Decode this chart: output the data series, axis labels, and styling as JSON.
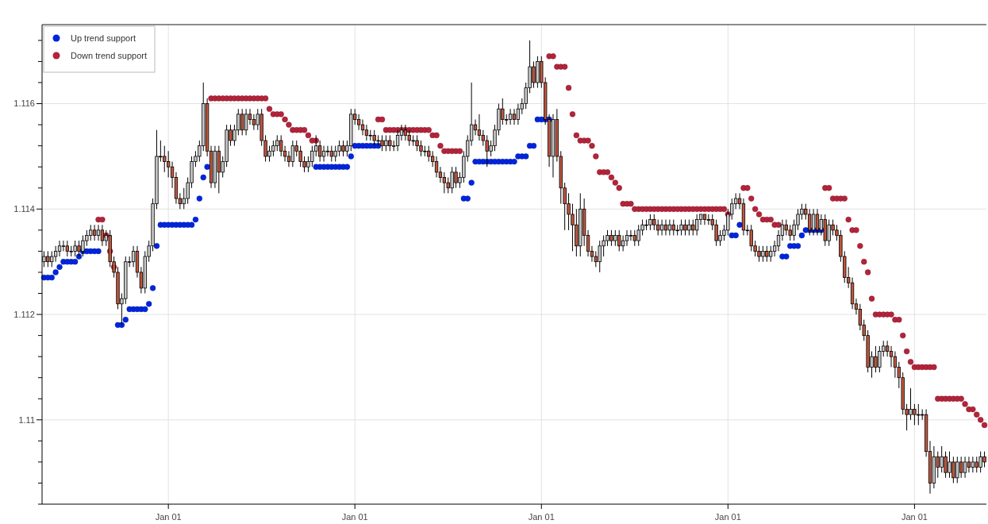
{
  "chart_data": {
    "type": "candlestick",
    "categories": [
      null,
      null,
      null,
      null,
      null,
      null,
      null,
      null,
      null,
      null,
      null,
      null,
      null,
      null,
      null,
      null,
      null,
      null,
      null,
      null,
      null,
      null,
      null,
      null,
      null,
      null,
      null,
      null,
      null,
      null,
      null,
      null,
      "Jan 01",
      null,
      null,
      null,
      null,
      null,
      null,
      null,
      null,
      null,
      null,
      null,
      null,
      null,
      null,
      null,
      null,
      null,
      null,
      null,
      null,
      null,
      null,
      null,
      null,
      null,
      null,
      null,
      null,
      null,
      null,
      null,
      null,
      null,
      null,
      null,
      null,
      null,
      null,
      null,
      null,
      null,
      null,
      null,
      null,
      null,
      null,
      null,
      "Jan 01",
      null,
      null,
      null,
      null,
      null,
      null,
      null,
      null,
      null,
      null,
      null,
      null,
      null,
      null,
      null,
      null,
      null,
      null,
      null,
      null,
      null,
      null,
      null,
      null,
      null,
      null,
      null,
      null,
      null,
      null,
      null,
      null,
      null,
      null,
      null,
      null,
      null,
      null,
      null,
      null,
      null,
      null,
      null,
      null,
      null,
      null,
      null,
      "Jan 01",
      null,
      null,
      null,
      null,
      null,
      null,
      null,
      null,
      null,
      null,
      null,
      null,
      null,
      null,
      null,
      null,
      null,
      null,
      null,
      null,
      null,
      null,
      null,
      null,
      null,
      null,
      null,
      null,
      null,
      null,
      null,
      null,
      null,
      null,
      null,
      null,
      null,
      null,
      null,
      null,
      null,
      null,
      null,
      null,
      null,
      null,
      null,
      "Jan 01",
      null,
      null,
      null,
      null,
      null,
      null,
      null,
      null,
      null,
      null,
      null,
      null,
      null,
      null,
      null,
      null,
      null,
      null,
      null,
      null,
      null,
      null,
      null,
      null,
      null,
      null,
      null,
      null,
      null,
      null,
      null,
      null,
      null,
      null,
      null,
      null,
      null,
      null,
      null,
      null,
      null,
      null,
      null,
      null,
      null,
      null,
      null,
      "Jan 01",
      null,
      null,
      null,
      null,
      null,
      null,
      null,
      null,
      null,
      null,
      null,
      null,
      null,
      null,
      null,
      null,
      null,
      null
    ],
    "ohlc": [
      [
        1.113,
        1.1132,
        1.1129,
        1.1131
      ],
      [
        1.1131,
        1.1132,
        1.1129,
        1.113
      ],
      [
        1.113,
        1.1132,
        1.1129,
        1.1131
      ],
      [
        1.1131,
        1.1133,
        1.113,
        1.1132
      ],
      [
        1.1132,
        1.1134,
        1.1131,
        1.1133
      ],
      [
        1.1133,
        1.1134,
        1.1132,
        1.1133
      ],
      [
        1.1133,
        1.1134,
        1.1131,
        1.1132
      ],
      [
        1.1132,
        1.1133,
        1.1131,
        1.1132
      ],
      [
        1.1132,
        1.1134,
        1.1131,
        1.1133
      ],
      [
        1.1133,
        1.1134,
        1.1131,
        1.1132
      ],
      [
        1.1132,
        1.1135,
        1.1131,
        1.1134
      ],
      [
        1.1134,
        1.1136,
        1.1133,
        1.1135
      ],
      [
        1.1135,
        1.1137,
        1.1134,
        1.1136
      ],
      [
        1.1136,
        1.1137,
        1.1134,
        1.1135
      ],
      [
        1.1135,
        1.1137,
        1.1134,
        1.1136
      ],
      [
        1.1136,
        1.1137,
        1.1133,
        1.1134
      ],
      [
        1.1134,
        1.1136,
        1.1133,
        1.1135
      ],
      [
        1.1135,
        1.1136,
        1.1129,
        1.113
      ],
      [
        1.113,
        1.1131,
        1.1127,
        1.1128
      ],
      [
        1.1128,
        1.1129,
        1.1121,
        1.1122
      ],
      [
        1.1122,
        1.1124,
        1.1118,
        1.1123
      ],
      [
        1.1123,
        1.1131,
        1.1122,
        1.113
      ],
      [
        1.113,
        1.1131,
        1.1129,
        1.113
      ],
      [
        1.113,
        1.1133,
        1.1129,
        1.1132
      ],
      [
        1.1132,
        1.1133,
        1.1127,
        1.1128
      ],
      [
        1.1128,
        1.1129,
        1.1124,
        1.1125
      ],
      [
        1.1125,
        1.1132,
        1.1124,
        1.1131
      ],
      [
        1.1131,
        1.1134,
        1.113,
        1.1133
      ],
      [
        1.1133,
        1.1142,
        1.1132,
        1.1141
      ],
      [
        1.1141,
        1.1155,
        1.114,
        1.115
      ],
      [
        1.115,
        1.1153,
        1.1149,
        1.115
      ],
      [
        1.115,
        1.1152,
        1.1147,
        1.1149
      ],
      [
        1.1149,
        1.1151,
        1.1146,
        1.1148
      ],
      [
        1.1148,
        1.1149,
        1.1144,
        1.1146
      ],
      [
        1.1146,
        1.1147,
        1.1141,
        1.1142
      ],
      [
        1.1142,
        1.1143,
        1.114,
        1.1141
      ],
      [
        1.1141,
        1.1144,
        1.114,
        1.1142
      ],
      [
        1.1142,
        1.1146,
        1.1141,
        1.1145
      ],
      [
        1.1145,
        1.115,
        1.1144,
        1.1149
      ],
      [
        1.1149,
        1.1151,
        1.1148,
        1.115
      ],
      [
        1.115,
        1.1153,
        1.1149,
        1.1152
      ],
      [
        1.1152,
        1.1164,
        1.1151,
        1.116
      ],
      [
        1.116,
        1.1161,
        1.115,
        1.1151
      ],
      [
        1.1151,
        1.1152,
        1.1144,
        1.1145
      ],
      [
        1.1145,
        1.1152,
        1.1144,
        1.1151
      ],
      [
        1.1151,
        1.1152,
        1.1143,
        1.1147
      ],
      [
        1.1147,
        1.115,
        1.1146,
        1.1149
      ],
      [
        1.1149,
        1.1156,
        1.1148,
        1.1155
      ],
      [
        1.1155,
        1.1156,
        1.1152,
        1.1153
      ],
      [
        1.1153,
        1.1156,
        1.1152,
        1.1155
      ],
      [
        1.1155,
        1.1159,
        1.1154,
        1.1158
      ],
      [
        1.1158,
        1.1159,
        1.1154,
        1.1155
      ],
      [
        1.1155,
        1.1159,
        1.1154,
        1.1158
      ],
      [
        1.1158,
        1.1159,
        1.1156,
        1.1157
      ],
      [
        1.1157,
        1.1158,
        1.1155,
        1.1156
      ],
      [
        1.1156,
        1.1159,
        1.1155,
        1.1158
      ],
      [
        1.1158,
        1.1159,
        1.1152,
        1.1153
      ],
      [
        1.1153,
        1.1154,
        1.1149,
        1.115
      ],
      [
        1.115,
        1.1152,
        1.1149,
        1.1151
      ],
      [
        1.1151,
        1.1153,
        1.115,
        1.1152
      ],
      [
        1.1152,
        1.1154,
        1.1151,
        1.1153
      ],
      [
        1.1153,
        1.1154,
        1.115,
        1.1151
      ],
      [
        1.1151,
        1.1152,
        1.1149,
        1.115
      ],
      [
        1.115,
        1.1151,
        1.1148,
        1.1149
      ],
      [
        1.1149,
        1.1153,
        1.1148,
        1.1152
      ],
      [
        1.1152,
        1.1153,
        1.115,
        1.1151
      ],
      [
        1.1151,
        1.1152,
        1.1148,
        1.1149
      ],
      [
        1.1149,
        1.115,
        1.1147,
        1.1148
      ],
      [
        1.1148,
        1.115,
        1.1147,
        1.1149
      ],
      [
        1.1149,
        1.1152,
        1.1148,
        1.1151
      ],
      [
        1.1151,
        1.1154,
        1.115,
        1.1152
      ],
      [
        1.1152,
        1.1153,
        1.1149,
        1.115
      ],
      [
        1.115,
        1.1152,
        1.1149,
        1.1151
      ],
      [
        1.1151,
        1.1152,
        1.115,
        1.1151
      ],
      [
        1.1151,
        1.1152,
        1.1149,
        1.115
      ],
      [
        1.115,
        1.1152,
        1.1149,
        1.1151
      ],
      [
        1.1151,
        1.1153,
        1.115,
        1.1152
      ],
      [
        1.1152,
        1.1153,
        1.115,
        1.1151
      ],
      [
        1.1151,
        1.1153,
        1.115,
        1.1152
      ],
      [
        1.1152,
        1.1159,
        1.1151,
        1.1158
      ],
      [
        1.1158,
        1.1159,
        1.1156,
        1.1157
      ],
      [
        1.1157,
        1.1158,
        1.1155,
        1.1156
      ],
      [
        1.1156,
        1.1157,
        1.1154,
        1.1155
      ],
      [
        1.1155,
        1.1156,
        1.1153,
        1.1154
      ],
      [
        1.1154,
        1.1155,
        1.1153,
        1.1154
      ],
      [
        1.1154,
        1.1155,
        1.1152,
        1.1153
      ],
      [
        1.1153,
        1.1154,
        1.1152,
        1.1153
      ],
      [
        1.1153,
        1.1154,
        1.1151,
        1.1152
      ],
      [
        1.1152,
        1.1154,
        1.1151,
        1.1153
      ],
      [
        1.1153,
        1.1154,
        1.1151,
        1.1152
      ],
      [
        1.1152,
        1.1153,
        1.1151,
        1.1152
      ],
      [
        1.1152,
        1.1155,
        1.1151,
        1.1154
      ],
      [
        1.1154,
        1.1156,
        1.1153,
        1.1155
      ],
      [
        1.1155,
        1.1156,
        1.1153,
        1.1154
      ],
      [
        1.1154,
        1.1155,
        1.1152,
        1.1153
      ],
      [
        1.1153,
        1.1154,
        1.1152,
        1.1153
      ],
      [
        1.1153,
        1.1154,
        1.1151,
        1.1152
      ],
      [
        1.1152,
        1.1153,
        1.115,
        1.1151
      ],
      [
        1.1151,
        1.1152,
        1.115,
        1.1151
      ],
      [
        1.1151,
        1.1152,
        1.1149,
        1.115
      ],
      [
        1.115,
        1.1151,
        1.1148,
        1.1149
      ],
      [
        1.1149,
        1.115,
        1.1146,
        1.1147
      ],
      [
        1.1147,
        1.1148,
        1.1145,
        1.1146
      ],
      [
        1.1146,
        1.1147,
        1.1143,
        1.1145
      ],
      [
        1.1145,
        1.1146,
        1.1143,
        1.1144
      ],
      [
        1.1144,
        1.1148,
        1.1143,
        1.1147
      ],
      [
        1.1147,
        1.1148,
        1.1144,
        1.1145
      ],
      [
        1.1145,
        1.1147,
        1.1144,
        1.1146
      ],
      [
        1.1146,
        1.1151,
        1.1145,
        1.115
      ],
      [
        1.115,
        1.1154,
        1.1149,
        1.1153
      ],
      [
        1.1153,
        1.1164,
        1.1152,
        1.1156
      ],
      [
        1.1156,
        1.1157,
        1.1154,
        1.1155
      ],
      [
        1.1155,
        1.1158,
        1.1153,
        1.1154
      ],
      [
        1.1154,
        1.1155,
        1.1152,
        1.1153
      ],
      [
        1.1153,
        1.1154,
        1.1148,
        1.1151
      ],
      [
        1.1151,
        1.1153,
        1.115,
        1.1152
      ],
      [
        1.1152,
        1.1156,
        1.1151,
        1.1155
      ],
      [
        1.1155,
        1.116,
        1.1154,
        1.1159
      ],
      [
        1.1159,
        1.1161,
        1.1156,
        1.1157
      ],
      [
        1.1157,
        1.1158,
        1.1156,
        1.1157
      ],
      [
        1.1157,
        1.1159,
        1.1156,
        1.1158
      ],
      [
        1.1158,
        1.1159,
        1.1156,
        1.1157
      ],
      [
        1.1157,
        1.116,
        1.1156,
        1.1159
      ],
      [
        1.1159,
        1.1161,
        1.1158,
        1.116
      ],
      [
        1.116,
        1.1164,
        1.1159,
        1.1163
      ],
      [
        1.1163,
        1.1172,
        1.1162,
        1.1167
      ],
      [
        1.1167,
        1.1168,
        1.1163,
        1.1164
      ],
      [
        1.1164,
        1.1169,
        1.1163,
        1.1168
      ],
      [
        1.1168,
        1.1169,
        1.1163,
        1.1164
      ],
      [
        1.1164,
        1.1165,
        1.1156,
        1.1157
      ],
      [
        1.1157,
        1.1158,
        1.1148,
        1.115
      ],
      [
        1.115,
        1.1158,
        1.1146,
        1.1157
      ],
      [
        1.1157,
        1.1159,
        1.1149,
        1.115
      ],
      [
        1.115,
        1.1151,
        1.1141,
        1.1144
      ],
      [
        1.1144,
        1.1145,
        1.1136,
        1.1141
      ],
      [
        1.1141,
        1.1143,
        1.1136,
        1.1139
      ],
      [
        1.1139,
        1.1141,
        1.1132,
        1.1137
      ],
      [
        1.1137,
        1.114,
        1.1131,
        1.1133
      ],
      [
        1.1133,
        1.1143,
        1.1131,
        1.114
      ],
      [
        1.114,
        1.1142,
        1.1133,
        1.1135
      ],
      [
        1.1135,
        1.1136,
        1.1131,
        1.1132
      ],
      [
        1.1132,
        1.1133,
        1.113,
        1.1131
      ],
      [
        1.1131,
        1.1132,
        1.1129,
        1.113
      ],
      [
        1.113,
        1.1134,
        1.1128,
        1.1133
      ],
      [
        1.1133,
        1.1135,
        1.1131,
        1.1134
      ],
      [
        1.1134,
        1.1136,
        1.1133,
        1.1135
      ],
      [
        1.1135,
        1.1136,
        1.1133,
        1.1134
      ],
      [
        1.1134,
        1.1136,
        1.1133,
        1.1135
      ],
      [
        1.1135,
        1.1136,
        1.1132,
        1.1133
      ],
      [
        1.1133,
        1.1135,
        1.1132,
        1.1134
      ],
      [
        1.1134,
        1.1136,
        1.1133,
        1.1135
      ],
      [
        1.1135,
        1.1136,
        1.1134,
        1.1135
      ],
      [
        1.1135,
        1.1136,
        1.1133,
        1.1134
      ],
      [
        1.1134,
        1.1137,
        1.1133,
        1.1136
      ],
      [
        1.1136,
        1.1138,
        1.1135,
        1.1137
      ],
      [
        1.1137,
        1.1138,
        1.1136,
        1.1137
      ],
      [
        1.1137,
        1.1139,
        1.1136,
        1.1138
      ],
      [
        1.1138,
        1.1139,
        1.1136,
        1.1137
      ],
      [
        1.1137,
        1.1138,
        1.1135,
        1.1136
      ],
      [
        1.1136,
        1.1138,
        1.1135,
        1.1137
      ],
      [
        1.1137,
        1.1138,
        1.1135,
        1.1136
      ],
      [
        1.1136,
        1.1138,
        1.1135,
        1.1137
      ],
      [
        1.1137,
        1.1138,
        1.1135,
        1.1136
      ],
      [
        1.1136,
        1.1137,
        1.1135,
        1.1136
      ],
      [
        1.1136,
        1.1138,
        1.1135,
        1.1137
      ],
      [
        1.1137,
        1.1138,
        1.1135,
        1.1136
      ],
      [
        1.1136,
        1.1138,
        1.1135,
        1.1137
      ],
      [
        1.1137,
        1.1138,
        1.1135,
        1.1136
      ],
      [
        1.1136,
        1.1139,
        1.1135,
        1.1138
      ],
      [
        1.1138,
        1.1139,
        1.1137,
        1.1139
      ],
      [
        1.1139,
        1.1139,
        1.1137,
        1.1138
      ],
      [
        1.1138,
        1.1139,
        1.1137,
        1.1138
      ],
      [
        1.1138,
        1.1139,
        1.1136,
        1.1137
      ],
      [
        1.1137,
        1.1138,
        1.1133,
        1.1134
      ],
      [
        1.1134,
        1.1136,
        1.1133,
        1.1135
      ],
      [
        1.1135,
        1.1137,
        1.1134,
        1.1136
      ],
      [
        1.1136,
        1.114,
        1.1135,
        1.1139
      ],
      [
        1.1139,
        1.1142,
        1.1138,
        1.1141
      ],
      [
        1.1141,
        1.1143,
        1.114,
        1.1142
      ],
      [
        1.1142,
        1.1143,
        1.114,
        1.1141
      ],
      [
        1.1141,
        1.1142,
        1.1135,
        1.1136
      ],
      [
        1.1136,
        1.1137,
        1.1135,
        1.1136
      ],
      [
        1.1136,
        1.1137,
        1.1132,
        1.1133
      ],
      [
        1.1133,
        1.1134,
        1.1131,
        1.1132
      ],
      [
        1.1132,
        1.1133,
        1.113,
        1.1131
      ],
      [
        1.1131,
        1.1133,
        1.113,
        1.1132
      ],
      [
        1.1132,
        1.1133,
        1.113,
        1.1131
      ],
      [
        1.1131,
        1.1133,
        1.113,
        1.1132
      ],
      [
        1.1132,
        1.1134,
        1.1131,
        1.1133
      ],
      [
        1.1133,
        1.1136,
        1.1132,
        1.1135
      ],
      [
        1.1135,
        1.1138,
        1.1134,
        1.1137
      ],
      [
        1.1137,
        1.1138,
        1.1135,
        1.1136
      ],
      [
        1.1136,
        1.1137,
        1.1134,
        1.1135
      ],
      [
        1.1135,
        1.1138,
        1.1134,
        1.1137
      ],
      [
        1.1137,
        1.114,
        1.1136,
        1.1139
      ],
      [
        1.1139,
        1.1141,
        1.1138,
        1.114
      ],
      [
        1.114,
        1.1141,
        1.1138,
        1.1139
      ],
      [
        1.1139,
        1.114,
        1.1135,
        1.1136
      ],
      [
        1.1136,
        1.114,
        1.1135,
        1.1139
      ],
      [
        1.1139,
        1.114,
        1.1135,
        1.1136
      ],
      [
        1.1136,
        1.1139,
        1.1135,
        1.1138
      ],
      [
        1.1138,
        1.1139,
        1.1133,
        1.1134
      ],
      [
        1.1134,
        1.1138,
        1.1133,
        1.1137
      ],
      [
        1.1137,
        1.1138,
        1.1135,
        1.1136
      ],
      [
        1.1136,
        1.1137,
        1.1134,
        1.1135
      ],
      [
        1.1135,
        1.1136,
        1.113,
        1.1131
      ],
      [
        1.1131,
        1.1132,
        1.1126,
        1.1127
      ],
      [
        1.1127,
        1.1129,
        1.1125,
        1.1126
      ],
      [
        1.1126,
        1.1127,
        1.1121,
        1.1122
      ],
      [
        1.1122,
        1.1123,
        1.112,
        1.1121
      ],
      [
        1.1121,
        1.1122,
        1.1117,
        1.1118
      ],
      [
        1.1118,
        1.1119,
        1.1115,
        1.1116
      ],
      [
        1.1116,
        1.1117,
        1.1109,
        1.111
      ],
      [
        1.111,
        1.1113,
        1.1108,
        1.1112
      ],
      [
        1.1112,
        1.1114,
        1.1109,
        1.111
      ],
      [
        1.111,
        1.1114,
        1.1109,
        1.1113
      ],
      [
        1.1113,
        1.1115,
        1.1112,
        1.1114
      ],
      [
        1.1114,
        1.1115,
        1.1112,
        1.1113
      ],
      [
        1.1113,
        1.1114,
        1.111,
        1.1112
      ],
      [
        1.1112,
        1.1113,
        1.1108,
        1.111
      ],
      [
        1.111,
        1.1111,
        1.1106,
        1.1108
      ],
      [
        1.1108,
        1.1109,
        1.1101,
        1.1102
      ],
      [
        1.1102,
        1.1103,
        1.1098,
        1.1101
      ],
      [
        1.1101,
        1.1106,
        1.11,
        1.1102
      ],
      [
        1.1102,
        1.1103,
        1.1099,
        1.1101
      ],
      [
        1.1101,
        1.1103,
        1.1099,
        1.1101
      ],
      [
        1.1101,
        1.1102,
        1.11,
        1.1101
      ],
      [
        1.1101,
        1.1102,
        1.1093,
        1.1094
      ],
      [
        1.1094,
        1.1096,
        1.1086,
        1.1088
      ],
      [
        1.1088,
        1.1095,
        1.1087,
        1.1093
      ],
      [
        1.1093,
        1.1094,
        1.1089,
        1.1091
      ],
      [
        1.1091,
        1.1095,
        1.109,
        1.1093
      ],
      [
        1.1093,
        1.1094,
        1.1089,
        1.109
      ],
      [
        1.109,
        1.1094,
        1.1089,
        1.1092
      ],
      [
        1.1092,
        1.1093,
        1.1088,
        1.1089
      ],
      [
        1.1089,
        1.1093,
        1.1088,
        1.1092
      ],
      [
        1.1092,
        1.1093,
        1.1089,
        1.109
      ],
      [
        1.109,
        1.1093,
        1.1089,
        1.1092
      ],
      [
        1.1092,
        1.1093,
        1.109,
        1.1091
      ],
      [
        1.1091,
        1.1093,
        1.109,
        1.1092
      ],
      [
        1.1092,
        1.1093,
        1.109,
        1.1091
      ],
      [
        1.1091,
        1.1094,
        1.109,
        1.1093
      ],
      [
        1.1093,
        1.1094,
        1.1091,
        1.1092
      ]
    ],
    "series": [
      {
        "name": "Up trend support",
        "type": "scatter",
        "color": "#0025dd",
        "values": [
          1.1127,
          1.1127,
          1.1127,
          1.1128,
          1.1129,
          1.113,
          1.113,
          1.113,
          1.113,
          1.1131,
          1.1132,
          1.1132,
          1.1132,
          1.1132,
          1.1132,
          null,
          null,
          null,
          null,
          1.1118,
          1.1118,
          1.1119,
          1.1121,
          1.1121,
          1.1121,
          1.1121,
          1.1121,
          1.1122,
          1.1125,
          1.1133,
          1.1137,
          1.1137,
          1.1137,
          1.1137,
          1.1137,
          1.1137,
          1.1137,
          1.1137,
          1.1137,
          1.1138,
          1.1142,
          1.1146,
          1.1148,
          null,
          null,
          null,
          null,
          null,
          null,
          null,
          null,
          null,
          null,
          null,
          null,
          null,
          null,
          null,
          null,
          null,
          null,
          null,
          null,
          null,
          null,
          null,
          null,
          null,
          null,
          null,
          1.1148,
          1.1148,
          1.1148,
          1.1148,
          1.1148,
          1.1148,
          1.1148,
          1.1148,
          1.1148,
          1.115,
          1.1152,
          1.1152,
          1.1152,
          1.1152,
          1.1152,
          1.1152,
          1.1152,
          null,
          null,
          null,
          null,
          null,
          null,
          null,
          null,
          null,
          null,
          null,
          null,
          null,
          null,
          null,
          null,
          null,
          null,
          null,
          null,
          null,
          1.1142,
          1.1142,
          1.1145,
          1.1149,
          1.1149,
          1.1149,
          1.1149,
          1.1149,
          1.1149,
          1.1149,
          1.1149,
          1.1149,
          1.1149,
          1.1149,
          1.115,
          1.115,
          1.115,
          1.1152,
          1.1152,
          1.1157,
          1.1157,
          1.1157,
          1.1157,
          null,
          null,
          null,
          null,
          null,
          null,
          null,
          null,
          null,
          null,
          null,
          null,
          null,
          null,
          null,
          null,
          null,
          null,
          null,
          null,
          null,
          null,
          null,
          null,
          null,
          null,
          null,
          null,
          null,
          null,
          null,
          null,
          null,
          null,
          null,
          null,
          null,
          null,
          null,
          null,
          null,
          null,
          null,
          null,
          null,
          null,
          1.1135,
          1.1135,
          1.1137,
          null,
          null,
          null,
          null,
          null,
          null,
          null,
          null,
          null,
          null,
          1.1131,
          1.1131,
          1.1133,
          1.1133,
          1.1133,
          1.1135,
          1.1136,
          1.1136,
          1.1136,
          1.1136,
          1.1136,
          null,
          null,
          null,
          null,
          null,
          null,
          null,
          null,
          null,
          null,
          null,
          null,
          null,
          null,
          null,
          null,
          null,
          null,
          null,
          null,
          null,
          null,
          null,
          null,
          null,
          null,
          null,
          null,
          null,
          null,
          null,
          null,
          null,
          null,
          null,
          null,
          null,
          null,
          null,
          null,
          null,
          null
        ]
      },
      {
        "name": "Down trend support",
        "type": "scatter",
        "color": "#b3243a",
        "values": [
          null,
          null,
          null,
          null,
          null,
          null,
          null,
          null,
          null,
          null,
          null,
          null,
          null,
          null,
          1.1138,
          1.1138,
          1.1135,
          1.1132,
          1.1129,
          null,
          null,
          null,
          null,
          null,
          null,
          null,
          null,
          null,
          null,
          null,
          null,
          null,
          null,
          null,
          null,
          null,
          null,
          null,
          null,
          null,
          null,
          null,
          null,
          1.1161,
          1.1161,
          1.1161,
          1.1161,
          1.1161,
          1.1161,
          1.1161,
          1.1161,
          1.1161,
          1.1161,
          1.1161,
          1.1161,
          1.1161,
          1.1161,
          1.1161,
          1.1159,
          1.1158,
          1.1158,
          1.1158,
          1.1157,
          1.1156,
          1.1155,
          1.1155,
          1.1155,
          1.1155,
          1.1154,
          1.1153,
          1.1153,
          null,
          null,
          null,
          null,
          null,
          null,
          null,
          null,
          null,
          null,
          null,
          null,
          null,
          null,
          null,
          1.1157,
          1.1157,
          1.1155,
          1.1155,
          1.1155,
          1.1155,
          1.1155,
          1.1155,
          1.1155,
          1.1155,
          1.1155,
          1.1155,
          1.1155,
          1.1155,
          1.1154,
          1.1154,
          1.1152,
          1.1151,
          1.1151,
          1.1151,
          1.1151,
          1.1151,
          null,
          null,
          null,
          null,
          null,
          null,
          null,
          null,
          null,
          null,
          null,
          null,
          null,
          null,
          null,
          null,
          null,
          null,
          null,
          null,
          null,
          null,
          1.1169,
          1.1169,
          1.1167,
          1.1167,
          1.1167,
          1.1163,
          1.1158,
          1.1154,
          1.1153,
          1.1153,
          1.1153,
          1.1152,
          1.115,
          1.1147,
          1.1147,
          1.1147,
          1.1146,
          1.1145,
          1.1144,
          1.1141,
          1.1141,
          1.1141,
          1.114,
          1.114,
          1.114,
          1.114,
          1.114,
          1.114,
          1.114,
          1.114,
          1.114,
          1.114,
          1.114,
          1.114,
          1.114,
          1.114,
          1.114,
          1.114,
          1.114,
          1.114,
          1.114,
          1.114,
          1.114,
          1.114,
          1.114,
          1.114,
          1.1139,
          null,
          null,
          null,
          1.1144,
          1.1144,
          1.1142,
          1.114,
          1.1139,
          1.1138,
          1.1138,
          1.1138,
          1.1137,
          1.1137,
          null,
          null,
          null,
          null,
          null,
          null,
          null,
          null,
          null,
          null,
          null,
          1.1144,
          1.1144,
          1.1142,
          1.1142,
          1.1142,
          1.1142,
          1.1138,
          1.1136,
          1.1136,
          1.1133,
          1.113,
          1.1128,
          1.1123,
          1.112,
          1.112,
          1.112,
          1.112,
          1.112,
          1.1119,
          1.1119,
          1.1116,
          1.1113,
          1.1111,
          1.111,
          1.111,
          1.111,
          1.111,
          1.111,
          1.111,
          1.1104,
          1.1104,
          1.1104,
          1.1104,
          1.1104,
          1.1104,
          1.1104,
          1.1103,
          1.1102,
          1.1102,
          1.1101,
          1.11,
          1.1099
        ]
      }
    ],
    "ylim": [
      1.1084,
      1.1175
    ],
    "yticks": [
      {
        "value": 1.1084,
        "label": null
      },
      {
        "value": 1.1088,
        "label": null
      },
      {
        "value": 1.1092,
        "label": null
      },
      {
        "value": 1.1096,
        "label": null
      },
      1.11,
      {
        "value": 1.1104,
        "label": null
      },
      {
        "value": 1.1108,
        "label": null
      },
      {
        "value": 1.1112,
        "label": null
      },
      {
        "value": 1.1116,
        "label": null
      },
      1.112,
      {
        "value": 1.1124,
        "label": null
      },
      {
        "value": 1.1128,
        "label": null
      },
      {
        "value": 1.1132,
        "label": null
      },
      {
        "value": 1.1136,
        "label": null
      },
      1.114,
      {
        "value": 1.1144,
        "label": null
      },
      {
        "value": 1.1148,
        "label": null
      },
      {
        "value": 1.1152,
        "label": null
      },
      {
        "value": 1.1156,
        "label": null
      },
      1.116,
      {
        "value": 1.1164,
        "label": null
      },
      {
        "value": 1.1168,
        "label": null
      },
      {
        "value": 1.1172,
        "label": null
      }
    ],
    "grid": true,
    "legend": "top left",
    "marker": "circle"
  }
}
